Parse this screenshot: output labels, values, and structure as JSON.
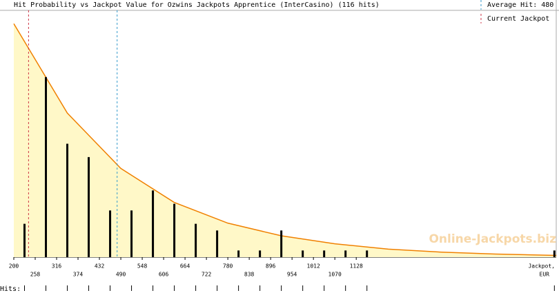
{
  "chart_data": {
    "type": "bar",
    "title": "Hit Probability vs Jackpot Value for Ozwins Jackpots Apprentice (InterCasino) (116 hits)",
    "x": [
      229,
      287,
      345,
      403,
      461,
      519,
      577,
      635,
      693,
      751,
      809,
      867,
      925,
      983,
      1041,
      1099,
      1157,
      1665
    ],
    "series": [
      {
        "color": "#000000",
        "values": [
          5,
          27,
          17,
          15,
          7,
          7,
          10,
          8,
          5,
          4,
          1,
          1,
          4,
          1,
          1,
          1,
          1,
          1
        ]
      }
    ],
    "curve": {
      "x": [
        200,
        345,
        490,
        635,
        780,
        925,
        1070,
        1215,
        1360,
        1505,
        1670
      ],
      "values": [
        35,
        21.6,
        13.3,
        8.2,
        5.1,
        3.2,
        2.0,
        1.2,
        0.75,
        0.46,
        0.26
      ],
      "color": "#f08000",
      "fill": "#fff8c8"
    },
    "average_hit": {
      "label": "Average Hit: 480",
      "value": 480,
      "color": "#3399cc"
    },
    "current_jackpot": {
      "label": "Current Jackpot",
      "value": 240,
      "color": "#cc3344"
    },
    "xlim": [
      200,
      1670
    ],
    "ylim": [
      0,
      37
    ],
    "xticks": [
      200,
      258,
      316,
      374,
      432,
      490,
      548,
      606,
      664,
      722,
      780,
      838,
      896,
      954,
      1012,
      1070,
      1128
    ],
    "x_label": "Jackpot,",
    "x_unit": "EUR",
    "rug_label": "Hits:",
    "watermark": "Online-Jackpots.biz"
  }
}
